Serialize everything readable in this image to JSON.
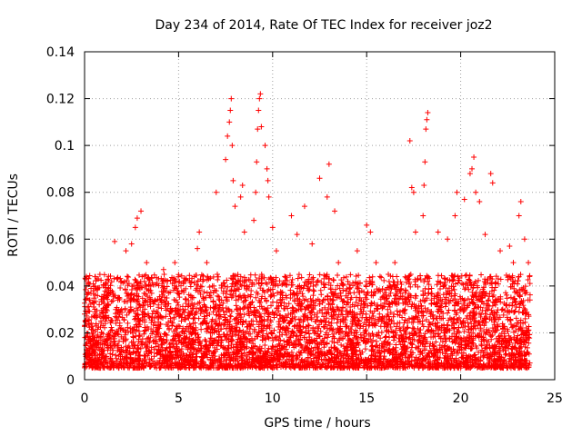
{
  "chart_data": {
    "type": "scatter",
    "title": "Day 234 of 2014, Rate Of TEC Index for receiver joz2",
    "xlabel": "GPS time / hours",
    "ylabel": "ROTI / TECUs",
    "xlim": [
      0,
      25
    ],
    "ylim": [
      0,
      0.14
    ],
    "x_ticks": [
      0,
      5,
      10,
      15,
      20,
      25
    ],
    "x_tick_labels": [
      "0",
      "5",
      "10",
      "15",
      "20",
      "25"
    ],
    "y_ticks": [
      0,
      0.02,
      0.04,
      0.06,
      0.08,
      0.1,
      0.12,
      0.14
    ],
    "y_tick_labels": [
      "0",
      "0.02",
      "0.04",
      "0.06",
      "0.08",
      "0.1",
      "0.12",
      "0.14"
    ],
    "grid": true,
    "marker": "+",
    "color": "#ff0000",
    "x_data_range": [
      0,
      23.7
    ],
    "typical_y_range": [
      0.005,
      0.045
    ],
    "series": [
      {
        "name": "ROTI",
        "points": [
          [
            0.05,
            0.043
          ],
          [
            0.1,
            0.04
          ],
          [
            0.2,
            0.037
          ],
          [
            0.25,
            0.034
          ],
          [
            0.15,
            0.031
          ],
          [
            1.0,
            0.04
          ],
          [
            1.6,
            0.059
          ],
          [
            2.2,
            0.055
          ],
          [
            2.5,
            0.058
          ],
          [
            2.7,
            0.065
          ],
          [
            2.8,
            0.069
          ],
          [
            3.0,
            0.072
          ],
          [
            3.3,
            0.05
          ],
          [
            4.2,
            0.047
          ],
          [
            4.8,
            0.05
          ],
          [
            6.0,
            0.056
          ],
          [
            6.1,
            0.063
          ],
          [
            6.5,
            0.05
          ],
          [
            6.8,
            0.04
          ],
          [
            7.0,
            0.08
          ],
          [
            7.5,
            0.094
          ],
          [
            7.6,
            0.104
          ],
          [
            7.7,
            0.11
          ],
          [
            7.75,
            0.115
          ],
          [
            7.8,
            0.12
          ],
          [
            7.85,
            0.1
          ],
          [
            7.9,
            0.085
          ],
          [
            8.0,
            0.074
          ],
          [
            8.3,
            0.078
          ],
          [
            8.4,
            0.083
          ],
          [
            8.5,
            0.063
          ],
          [
            9.0,
            0.068
          ],
          [
            9.1,
            0.08
          ],
          [
            9.15,
            0.093
          ],
          [
            9.2,
            0.107
          ],
          [
            9.25,
            0.115
          ],
          [
            9.3,
            0.12
          ],
          [
            9.35,
            0.122
          ],
          [
            9.4,
            0.108
          ],
          [
            9.6,
            0.1
          ],
          [
            9.7,
            0.09
          ],
          [
            9.75,
            0.085
          ],
          [
            9.8,
            0.078
          ],
          [
            10.0,
            0.065
          ],
          [
            10.2,
            0.055
          ],
          [
            11.0,
            0.07
          ],
          [
            11.3,
            0.062
          ],
          [
            11.7,
            0.074
          ],
          [
            12.1,
            0.058
          ],
          [
            12.5,
            0.086
          ],
          [
            12.9,
            0.078
          ],
          [
            13.0,
            0.092
          ],
          [
            13.3,
            0.072
          ],
          [
            13.5,
            0.05
          ],
          [
            14.5,
            0.055
          ],
          [
            15.0,
            0.066
          ],
          [
            15.2,
            0.063
          ],
          [
            15.5,
            0.05
          ],
          [
            16.5,
            0.05
          ],
          [
            17.3,
            0.102
          ],
          [
            17.4,
            0.082
          ],
          [
            17.5,
            0.08
          ],
          [
            17.6,
            0.063
          ],
          [
            18.0,
            0.07
          ],
          [
            18.05,
            0.083
          ],
          [
            18.1,
            0.093
          ],
          [
            18.15,
            0.107
          ],
          [
            18.2,
            0.111
          ],
          [
            18.25,
            0.114
          ],
          [
            18.8,
            0.063
          ],
          [
            19.3,
            0.06
          ],
          [
            19.7,
            0.07
          ],
          [
            19.8,
            0.08
          ],
          [
            20.2,
            0.077
          ],
          [
            20.5,
            0.088
          ],
          [
            20.6,
            0.09
          ],
          [
            20.7,
            0.095
          ],
          [
            20.8,
            0.08
          ],
          [
            21.0,
            0.076
          ],
          [
            21.3,
            0.062
          ],
          [
            21.6,
            0.088
          ],
          [
            21.7,
            0.084
          ],
          [
            22.1,
            0.055
          ],
          [
            22.6,
            0.057
          ],
          [
            22.8,
            0.05
          ],
          [
            23.1,
            0.07
          ],
          [
            23.2,
            0.076
          ],
          [
            23.4,
            0.06
          ],
          [
            23.6,
            0.05
          ]
        ]
      }
    ]
  }
}
